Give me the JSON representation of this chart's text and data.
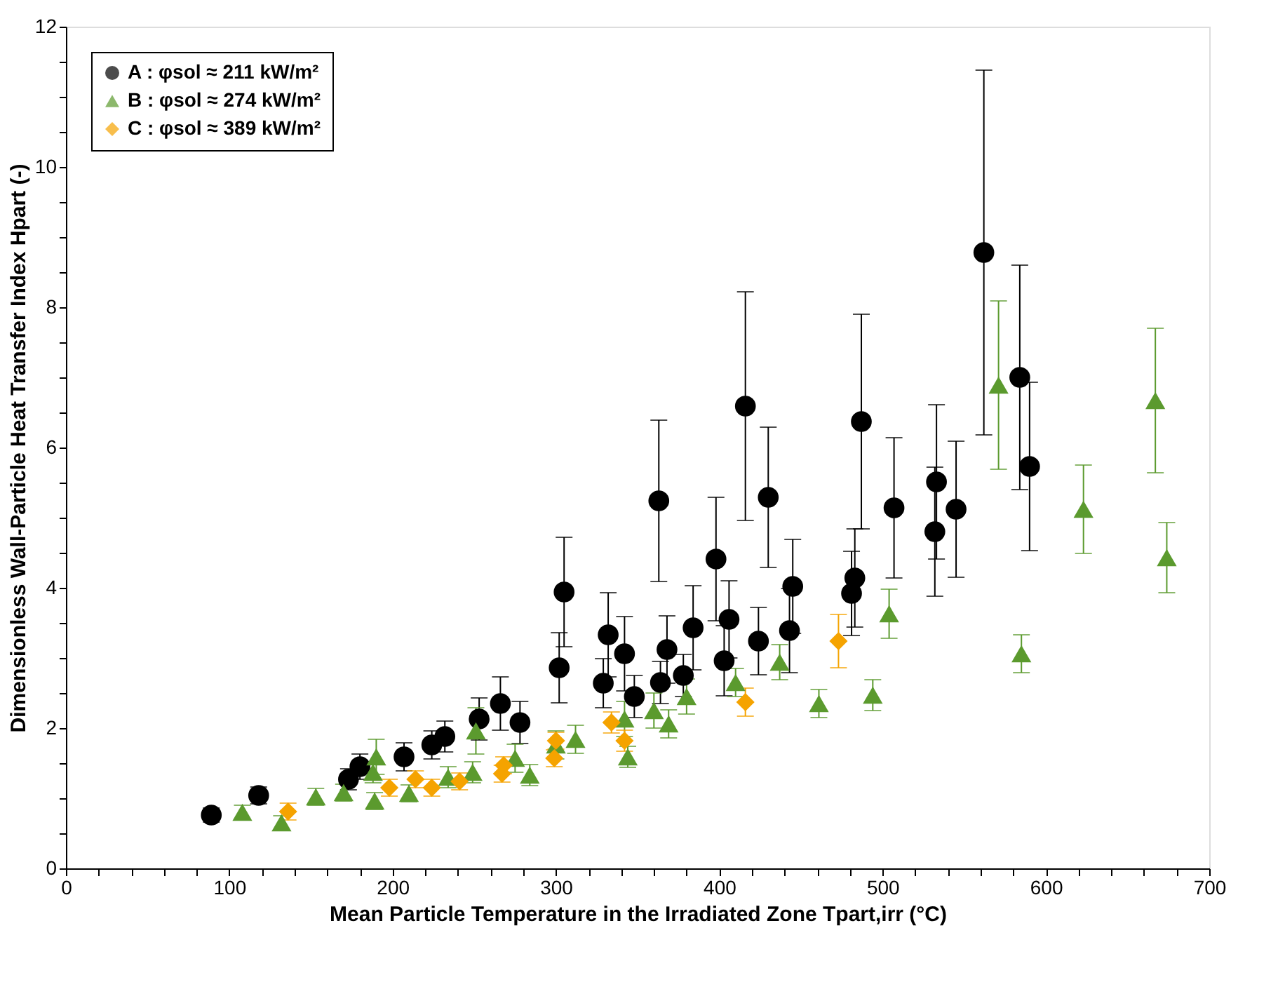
{
  "chart_data": {
    "type": "scatter",
    "xlabel": "Mean Particle Temperature in the Irradiated Zone Tpart,irr (°C)",
    "ylabel": "Dimensionless Wall-Particle Heat Transfer Index Hpart (-)",
    "xlim": [
      0,
      700
    ],
    "ylim": [
      0,
      12
    ],
    "xticks": [
      0,
      {
        "value": 20,
        "label": null
      },
      {
        "value": 40,
        "label": null
      },
      {
        "value": 60,
        "label": null
      },
      {
        "value": 80,
        "label": null
      },
      100,
      {
        "value": 120,
        "label": null
      },
      {
        "value": 140,
        "label": null
      },
      {
        "value": 160,
        "label": null
      },
      {
        "value": 180,
        "label": null
      },
      200,
      {
        "value": 220,
        "label": null
      },
      {
        "value": 240,
        "label": null
      },
      {
        "value": 260,
        "label": null
      },
      {
        "value": 280,
        "label": null
      },
      300,
      {
        "value": 320,
        "label": null
      },
      {
        "value": 340,
        "label": null
      },
      {
        "value": 360,
        "label": null
      },
      {
        "value": 380,
        "label": null
      },
      400,
      {
        "value": 420,
        "label": null
      },
      {
        "value": 440,
        "label": null
      },
      {
        "value": 460,
        "label": null
      },
      {
        "value": 480,
        "label": null
      },
      500,
      {
        "value": 520,
        "label": null
      },
      {
        "value": 540,
        "label": null
      },
      {
        "value": 560,
        "label": null
      },
      {
        "value": 580,
        "label": null
      },
      600,
      {
        "value": 620,
        "label": null
      },
      {
        "value": 640,
        "label": null
      },
      {
        "value": 660,
        "label": null
      },
      {
        "value": 680,
        "label": null
      },
      700
    ],
    "yticks": [
      0,
      {
        "value": 0.5,
        "label": null
      },
      {
        "value": 1,
        "label": null
      },
      {
        "value": 1.5,
        "label": null
      },
      2,
      {
        "value": 2.5,
        "label": null
      },
      {
        "value": 3,
        "label": null
      },
      {
        "value": 3.5,
        "label": null
      },
      4,
      {
        "value": 4.5,
        "label": null
      },
      {
        "value": 5,
        "label": null
      },
      {
        "value": 5.5,
        "label": null
      },
      6,
      {
        "value": 6.5,
        "label": null
      },
      {
        "value": 7,
        "label": null
      },
      {
        "value": 7.5,
        "label": null
      },
      8,
      {
        "value": 8.5,
        "label": null
      },
      {
        "value": 9,
        "label": null
      },
      {
        "value": 9.5,
        "label": null
      },
      10,
      {
        "value": 10.5,
        "label": null
      },
      {
        "value": 11,
        "label": null
      },
      {
        "value": 11.5,
        "label": null
      },
      12
    ],
    "grid": false,
    "legend": "top left",
    "series": [
      {
        "name": "A : φsol ≈ 211 kW/m²",
        "color": "#000000",
        "marker": "circle",
        "x": [
          89,
          118,
          173,
          180,
          207,
          224,
          232,
          253,
          266,
          278,
          302,
          305,
          329,
          332,
          342,
          348,
          363,
          364,
          368,
          378,
          384,
          398,
          403,
          406,
          416,
          424,
          430,
          443,
          445,
          481,
          483,
          487,
          507,
          532,
          533,
          545,
          562,
          584,
          590
        ],
        "values": [
          0.76,
          1.04,
          1.27,
          1.45,
          1.59,
          1.76,
          1.88,
          2.13,
          2.35,
          2.08,
          2.86,
          3.94,
          2.64,
          3.33,
          3.06,
          2.45,
          5.24,
          2.65,
          3.12,
          2.75,
          3.43,
          4.41,
          2.96,
          3.55,
          6.59,
          3.24,
          5.29,
          3.39,
          4.02,
          3.92,
          4.14,
          6.37,
          5.14,
          4.8,
          5.51,
          5.12,
          8.78,
          7.0,
          5.73
        ],
        "errors": [
          0.1,
          0.12,
          0.15,
          0.18,
          0.2,
          0.2,
          0.22,
          0.3,
          0.38,
          0.3,
          0.5,
          0.78,
          0.35,
          0.6,
          0.53,
          0.3,
          1.15,
          0.3,
          0.48,
          0.3,
          0.6,
          0.88,
          0.5,
          0.55,
          1.63,
          0.48,
          1.0,
          0.6,
          0.67,
          0.6,
          0.7,
          1.53,
          1.0,
          0.92,
          1.1,
          0.97,
          2.6,
          1.6,
          1.2
        ]
      },
      {
        "name": "B : φsol ≈ 274 kW/m²",
        "color": "#5b9a2e",
        "marker": "triangle",
        "x": [
          108,
          132,
          153,
          170,
          188,
          190,
          189,
          210,
          234,
          249,
          251,
          275,
          284,
          300,
          312,
          342,
          344,
          360,
          369,
          380,
          410,
          437,
          461,
          494,
          504,
          571,
          585,
          623,
          667,
          674
        ],
        "values": [
          0.8,
          0.65,
          1.02,
          1.08,
          1.37,
          1.59,
          0.96,
          1.07,
          1.3,
          1.37,
          1.96,
          1.57,
          1.33,
          1.76,
          1.84,
          2.13,
          1.59,
          2.25,
          2.06,
          2.45,
          2.65,
          2.94,
          2.35,
          2.47,
          3.63,
          6.89,
          3.06,
          5.12,
          6.67,
          4.43
        ],
        "errors": [
          0.1,
          0.1,
          0.12,
          0.12,
          0.15,
          0.25,
          0.12,
          0.12,
          0.15,
          0.15,
          0.33,
          0.2,
          0.15,
          0.2,
          0.2,
          0.25,
          0.15,
          0.25,
          0.2,
          0.25,
          0.2,
          0.25,
          0.2,
          0.22,
          0.35,
          1.2,
          0.27,
          0.63,
          1.03,
          0.5
        ]
      },
      {
        "name": "C : φsol ≈ 389 kW/m²",
        "color": "#f5a300",
        "marker": "diamond",
        "x": [
          136,
          198,
          214,
          224,
          241,
          267,
          268,
          299,
          300,
          334,
          342,
          416,
          473
        ],
        "values": [
          0.81,
          1.15,
          1.27,
          1.15,
          1.24,
          1.35,
          1.47,
          1.57,
          1.82,
          2.08,
          1.82,
          2.37,
          3.24
        ],
        "errors": [
          0.12,
          0.12,
          0.12,
          0.12,
          0.12,
          0.12,
          0.12,
          0.12,
          0.12,
          0.15,
          0.15,
          0.2,
          0.38
        ]
      }
    ]
  }
}
